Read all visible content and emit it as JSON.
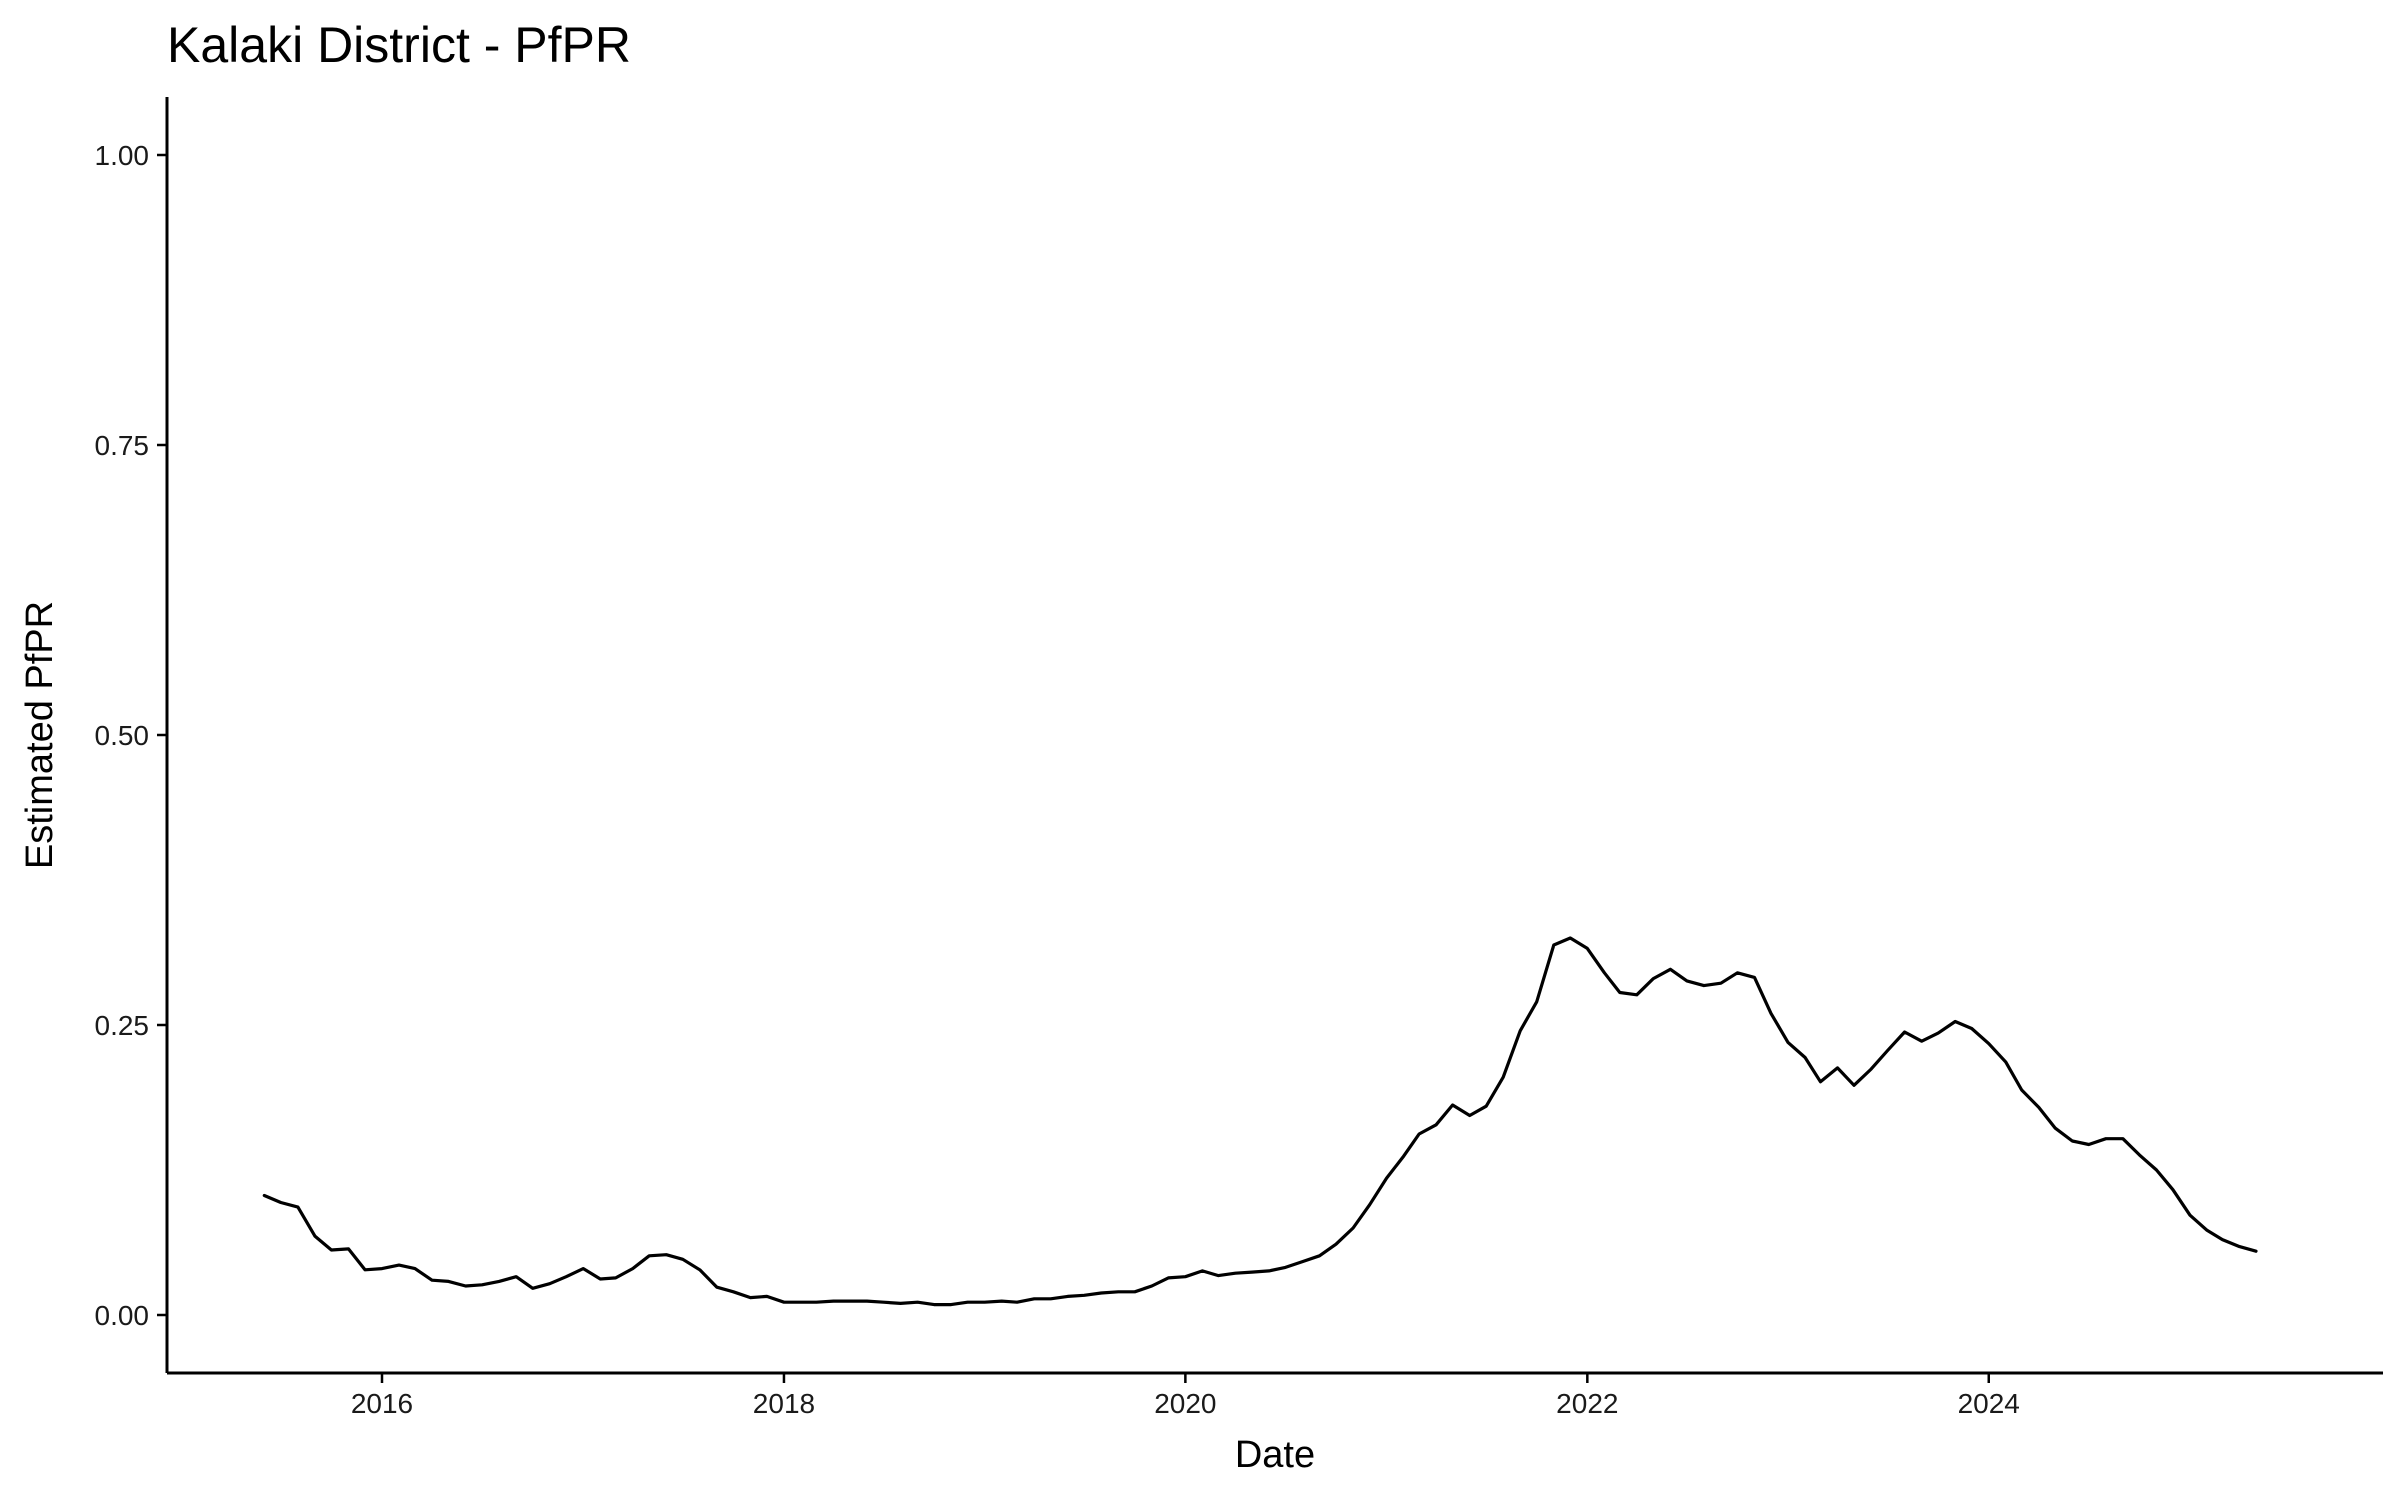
{
  "chart_data": {
    "type": "line",
    "title": "Kalaki District - PfPR",
    "xlabel": "Date",
    "ylabel": "Estimated PfPR",
    "x_type": "date",
    "xlim": [
      "2014-12-06",
      "2025-12-18"
    ],
    "ylim": [
      -0.05,
      1.05
    ],
    "x_ticks": [
      {
        "value": "2016-01-01",
        "label": "2016"
      },
      {
        "value": "2018-01-01",
        "label": "2018"
      },
      {
        "value": "2020-01-01",
        "label": "2020"
      },
      {
        "value": "2022-01-01",
        "label": "2022"
      },
      {
        "value": "2024-01-01",
        "label": "2024"
      }
    ],
    "y_ticks": [
      {
        "value": 0,
        "label": "0.00"
      },
      {
        "value": 0.25,
        "label": "0.25"
      },
      {
        "value": 0.5,
        "label": "0.50"
      },
      {
        "value": 0.75,
        "label": "0.75"
      },
      {
        "value": 1,
        "label": "1.00"
      }
    ],
    "grid": false,
    "legend": "none",
    "line_color": "#000000",
    "series": [
      {
        "x": [
          "2015-06-01",
          "2015-07-01",
          "2015-08-01",
          "2015-09-01",
          "2015-10-01",
          "2015-11-01",
          "2015-12-01",
          "2016-01-01",
          "2016-02-01",
          "2016-03-01",
          "2016-04-01",
          "2016-05-01",
          "2016-06-01",
          "2016-07-01",
          "2016-08-01",
          "2016-09-01",
          "2016-10-01",
          "2016-11-01",
          "2016-12-01",
          "2017-01-01",
          "2017-02-01",
          "2017-03-01",
          "2017-04-01",
          "2017-05-01",
          "2017-06-01",
          "2017-07-01",
          "2017-08-01",
          "2017-09-01",
          "2017-10-01",
          "2017-11-01",
          "2017-12-01",
          "2018-01-01",
          "2018-02-01",
          "2018-03-01",
          "2018-04-01",
          "2018-05-01",
          "2018-06-01",
          "2018-07-01",
          "2018-08-01",
          "2018-09-01",
          "2018-10-01",
          "2018-11-01",
          "2018-12-01",
          "2019-01-01",
          "2019-02-01",
          "2019-03-01",
          "2019-04-01",
          "2019-05-01",
          "2019-06-01",
          "2019-07-01",
          "2019-08-01",
          "2019-09-01",
          "2019-10-01",
          "2019-11-01",
          "2019-12-01",
          "2020-01-01",
          "2020-02-01",
          "2020-03-01",
          "2020-04-01",
          "2020-05-01",
          "2020-06-01",
          "2020-07-01",
          "2020-08-01",
          "2020-09-01",
          "2020-10-01",
          "2020-11-01",
          "2020-12-01",
          "2021-01-01",
          "2021-02-01",
          "2021-03-01",
          "2021-04-01",
          "2021-05-01",
          "2021-06-01",
          "2021-07-01",
          "2021-08-01",
          "2021-09-01",
          "2021-10-01",
          "2021-11-01",
          "2021-12-01",
          "2022-01-01",
          "2022-02-01",
          "2022-03-01",
          "2022-04-01",
          "2022-05-01",
          "2022-06-01",
          "2022-07-01",
          "2022-08-01",
          "2022-09-01",
          "2022-10-01",
          "2022-11-01",
          "2022-12-01",
          "2023-01-01",
          "2023-02-01",
          "2023-03-01",
          "2023-04-01",
          "2023-05-01",
          "2023-06-01",
          "2023-07-01",
          "2023-08-01",
          "2023-09-01",
          "2023-10-01",
          "2023-11-01",
          "2023-12-01",
          "2024-01-01",
          "2024-02-01",
          "2024-03-01",
          "2024-04-01",
          "2024-05-01",
          "2024-06-01",
          "2024-07-01",
          "2024-08-01",
          "2024-09-01",
          "2024-10-01",
          "2024-11-01",
          "2024-12-01",
          "2025-01-01",
          "2025-02-01",
          "2025-03-01",
          "2025-04-01",
          "2025-05-01"
        ],
        "values": [
          0.103,
          0.097,
          0.093,
          0.068,
          0.056,
          0.057,
          0.039,
          0.04,
          0.043,
          0.04,
          0.03,
          0.029,
          0.025,
          0.026,
          0.029,
          0.033,
          0.023,
          0.027,
          0.033,
          0.04,
          0.031,
          0.032,
          0.04,
          0.051,
          0.052,
          0.048,
          0.039,
          0.024,
          0.02,
          0.015,
          0.016,
          0.011,
          0.011,
          0.011,
          0.012,
          0.012,
          0.012,
          0.011,
          0.01,
          0.011,
          0.009,
          0.009,
          0.011,
          0.011,
          0.012,
          0.011,
          0.014,
          0.014,
          0.016,
          0.017,
          0.019,
          0.02,
          0.02,
          0.025,
          0.032,
          0.033,
          0.038,
          0.034,
          0.036,
          0.037,
          0.038,
          0.041,
          0.046,
          0.051,
          0.061,
          0.075,
          0.095,
          0.118,
          0.137,
          0.156,
          0.164,
          0.181,
          0.172,
          0.18,
          0.205,
          0.245,
          0.27,
          0.319,
          0.325,
          0.316,
          0.295,
          0.278,
          0.276,
          0.29,
          0.298,
          0.288,
          0.284,
          0.286,
          0.295,
          0.291,
          0.26,
          0.235,
          0.222,
          0.201,
          0.213,
          0.198,
          0.212,
          0.228,
          0.244,
          0.236,
          0.243,
          0.253,
          0.247,
          0.234,
          0.218,
          0.194,
          0.179,
          0.161,
          0.15,
          0.147,
          0.152,
          0.152,
          0.138,
          0.125,
          0.108,
          0.086,
          0.073,
          0.065,
          0.059,
          0.055
        ]
      }
    ]
  }
}
